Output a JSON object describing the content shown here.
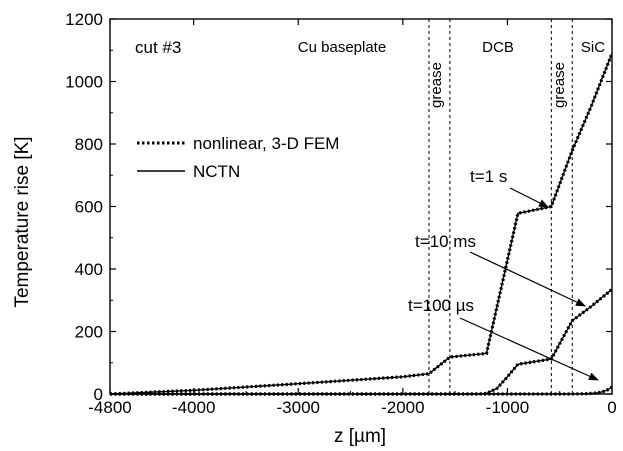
{
  "chart_data": {
    "type": "line",
    "title": "",
    "xlabel": "z [µm]",
    "ylabel": "Temperature rise [K]",
    "xlim": [
      -4800,
      0
    ],
    "ylim": [
      0,
      1200
    ],
    "xticks": [
      -4800,
      -4000,
      -3000,
      -2000,
      -1000,
      0
    ],
    "yticks": [
      0,
      200,
      400,
      600,
      800,
      1000,
      1200
    ],
    "grid": false,
    "legend_position": "upper-left",
    "legend": [
      {
        "label": "nonlinear, 3-D FEM",
        "style": "dotted"
      },
      {
        "label": "NCTN",
        "style": "solid"
      }
    ],
    "cut_label": "cut #3",
    "regions": [
      {
        "label": "Cu baseplate"
      },
      {
        "label": "grease"
      },
      {
        "label": "DCB"
      },
      {
        "label": "grease"
      },
      {
        "label": "SiC"
      }
    ],
    "boundaries": [
      -1750,
      -1550,
      -580,
      -380
    ],
    "series": [
      {
        "name": "t=1 s",
        "x": [
          -4800,
          -4000,
          -3000,
          -2000,
          -1750,
          -1550,
          -1200,
          -900,
          -580,
          -380,
          -200,
          0
        ],
        "y": [
          0,
          12,
          33,
          55,
          65,
          118,
          130,
          578,
          600,
          780,
          920,
          1090
        ]
      },
      {
        "name": "t=10 ms",
        "x": [
          -4800,
          -2000,
          -1600,
          -1300,
          -1200,
          -1100,
          -1000,
          -900,
          -580,
          -380,
          -200,
          0
        ],
        "y": [
          0,
          0,
          0,
          0,
          2,
          18,
          55,
          95,
          112,
          235,
          280,
          335
        ]
      },
      {
        "name": "t=100 µs",
        "x": [
          -4800,
          -1000,
          -500,
          -380,
          -250,
          -150,
          -100,
          -50,
          0
        ],
        "y": [
          0,
          0,
          0,
          0,
          1,
          3,
          6,
          12,
          22
        ]
      }
    ],
    "annotations": [
      {
        "text": "t=1 s"
      },
      {
        "text": "t=10 ms"
      },
      {
        "text": "t=100 µs"
      }
    ]
  }
}
